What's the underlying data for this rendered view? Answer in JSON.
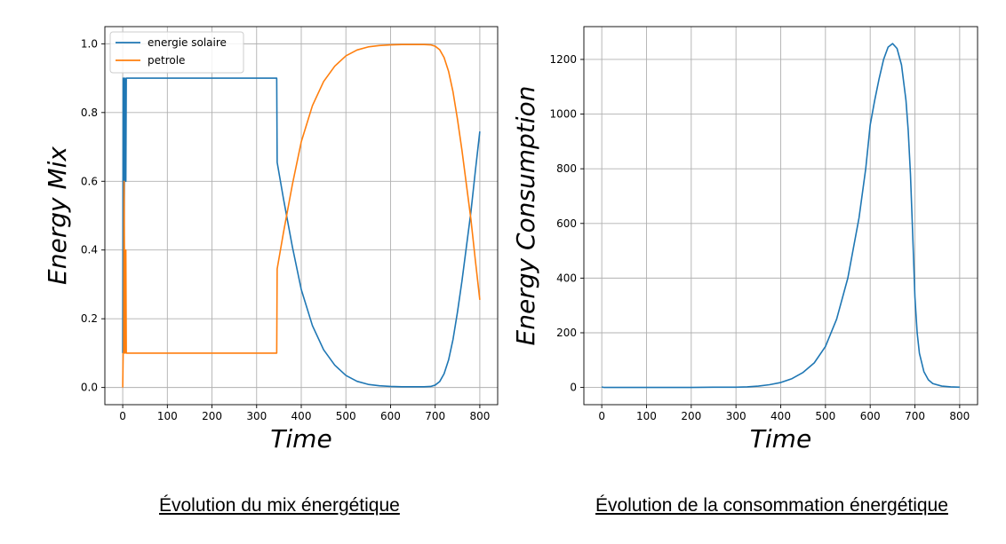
{
  "colors": {
    "blue": "#1f77b4",
    "orange": "#ff7f0e",
    "grid": "#b0b0b0"
  },
  "captions": {
    "left": "Évolution du mix énergétique",
    "right": "Évolution de la consommation énergétique"
  },
  "chart_data": [
    {
      "type": "line",
      "xlabel": "Time",
      "ylabel": "Energy Mix",
      "xlim": [
        -40,
        840
      ],
      "ylim": [
        -0.05,
        1.05
      ],
      "xticks": [
        0,
        100,
        200,
        300,
        400,
        500,
        600,
        700,
        800
      ],
      "yticks": [
        0.0,
        0.2,
        0.4,
        0.6,
        0.8,
        1.0
      ],
      "ytick_labels": [
        "0.0",
        "0.2",
        "0.4",
        "0.6",
        "0.8",
        "1.0"
      ],
      "grid": true,
      "legend": "top-left",
      "series": [
        {
          "name": "energie solaire",
          "color": "#1f77b4",
          "x": [
            0,
            1,
            2,
            3,
            5,
            7,
            8,
            9,
            10,
            100,
            200,
            300,
            345,
            346,
            360,
            380,
            400,
            425,
            450,
            475,
            500,
            525,
            550,
            575,
            600,
            625,
            650,
            675,
            690,
            700,
            710,
            720,
            730,
            740,
            750,
            760,
            770,
            780,
            790,
            800
          ],
          "y": [
            0.1,
            0.9,
            0.9,
            0.4,
            0.9,
            0.6,
            0.9,
            0.9,
            0.9,
            0.9,
            0.9,
            0.9,
            0.9,
            0.655,
            0.55,
            0.41,
            0.285,
            0.18,
            0.11,
            0.065,
            0.035,
            0.018,
            0.009,
            0.005,
            0.003,
            0.002,
            0.002,
            0.002,
            0.003,
            0.007,
            0.017,
            0.04,
            0.08,
            0.14,
            0.22,
            0.31,
            0.41,
            0.51,
            0.63,
            0.745
          ]
        },
        {
          "name": "petrole",
          "color": "#ff7f0e",
          "x": [
            0,
            1,
            2,
            3,
            5,
            7,
            8,
            9,
            10,
            100,
            200,
            300,
            345,
            346,
            360,
            380,
            400,
            425,
            450,
            475,
            500,
            525,
            550,
            575,
            600,
            625,
            650,
            675,
            690,
            700,
            710,
            720,
            730,
            740,
            750,
            760,
            770,
            780,
            790,
            800
          ],
          "y": [
            0.0,
            0.1,
            0.1,
            0.6,
            0.1,
            0.4,
            0.1,
            0.1,
            0.1,
            0.1,
            0.1,
            0.1,
            0.1,
            0.345,
            0.45,
            0.59,
            0.715,
            0.82,
            0.89,
            0.935,
            0.965,
            0.982,
            0.991,
            0.995,
            0.997,
            0.998,
            0.998,
            0.998,
            0.997,
            0.993,
            0.983,
            0.96,
            0.92,
            0.86,
            0.78,
            0.69,
            0.59,
            0.49,
            0.37,
            0.255
          ]
        }
      ]
    },
    {
      "type": "line",
      "xlabel": "Time",
      "ylabel": "Energy Consumption",
      "xlim": [
        -40,
        840
      ],
      "ylim": [
        -63,
        1320
      ],
      "xticks": [
        0,
        100,
        200,
        300,
        400,
        500,
        600,
        700,
        800
      ],
      "yticks": [
        0,
        200,
        400,
        600,
        800,
        1000,
        1200
      ],
      "grid": true,
      "series": [
        {
          "name": "",
          "color": "#1f77b4",
          "x": [
            0,
            5,
            50,
            100,
            150,
            200,
            250,
            300,
            325,
            350,
            375,
            400,
            425,
            450,
            475,
            500,
            525,
            550,
            575,
            590,
            600,
            610,
            620,
            630,
            640,
            650,
            660,
            670,
            680,
            685,
            690,
            695,
            700,
            705,
            710,
            720,
            730,
            740,
            760,
            780,
            800
          ],
          "y": [
            2,
            0,
            0,
            0,
            0,
            0,
            1,
            1,
            2,
            5,
            10,
            18,
            32,
            55,
            90,
            150,
            250,
            400,
            620,
            800,
            960,
            1050,
            1130,
            1200,
            1245,
            1258,
            1240,
            1180,
            1050,
            940,
            780,
            560,
            330,
            200,
            125,
            58,
            28,
            14,
            5,
            2,
            1
          ]
        }
      ]
    }
  ]
}
